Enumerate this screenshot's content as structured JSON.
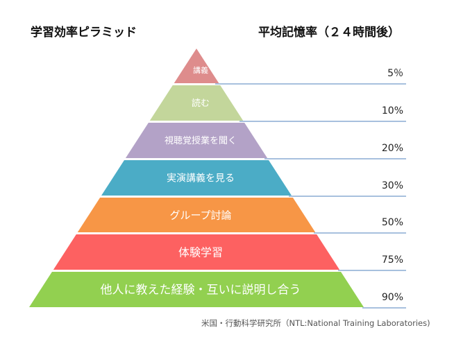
{
  "title": "学習効率ピラミッド",
  "retention_title": "平均記憶率（２４時間後）",
  "source": "米国・行動科学研究所（NTL:National Training Laboratories)",
  "levels": [
    {
      "label": "講義",
      "rate": "5％",
      "color": "#de8c8c",
      "text_color": "#ffffff"
    },
    {
      "label": "読む",
      "rate": "10%",
      "color": "#c3d69b",
      "text_color": "#ffffff"
    },
    {
      "label": "視聴覚授業を聞く",
      "rate": "20%",
      "color": "#b3a2c7",
      "text_color": "#ffffff"
    },
    {
      "label": "実演講義を見る",
      "rate": "30%",
      "color": "#4bacc6",
      "text_color": "#ffffff"
    },
    {
      "label": "グループ討論",
      "rate": "50%",
      "color": "#f79646",
      "text_color": "#ffffff"
    },
    {
      "label": "体験学習",
      "rate": "75%",
      "color": "#fd6161",
      "text_color": "#ffffff"
    },
    {
      "label": "他人に教えた経験・互いに説明し合う",
      "rate": "90%",
      "color": "#92d050",
      "text_color": "#ffffff"
    }
  ],
  "line_color": "#4f81bd"
}
